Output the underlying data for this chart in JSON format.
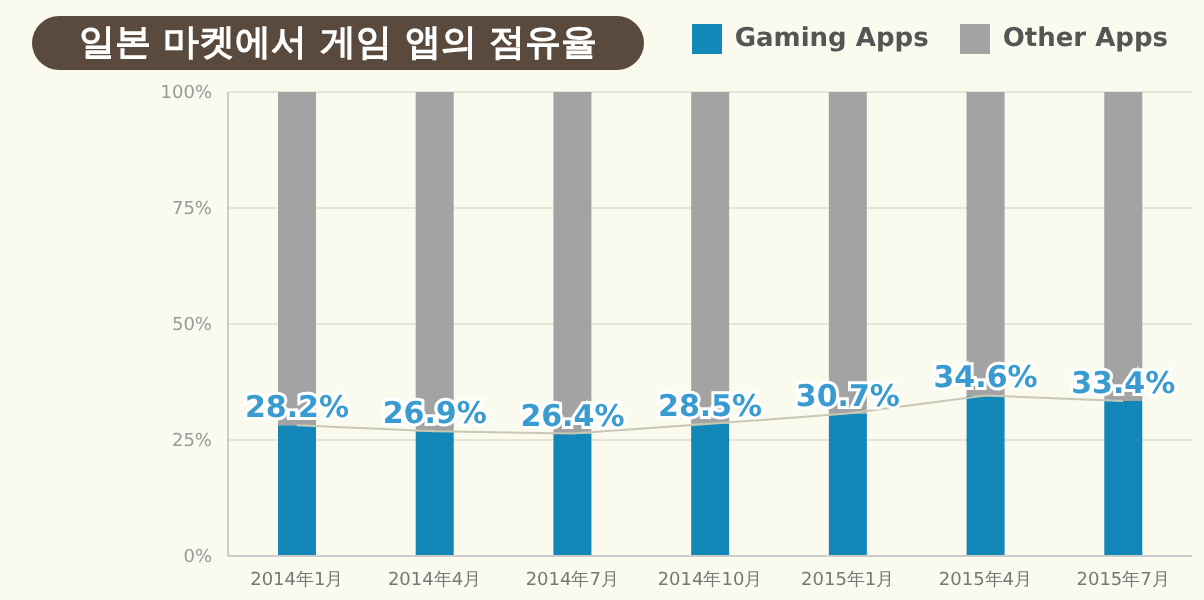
{
  "chart_data": {
    "type": "bar",
    "title": "일본 마켓에서 게임 앱의 점유율",
    "stacked": true,
    "categories": [
      "2014年1月",
      "2014年4月",
      "2014年7月",
      "2014年10月",
      "2015年1月",
      "2015年4月",
      "2015年7月"
    ],
    "series": [
      {
        "name": "Gaming Apps",
        "color": "#1287b8",
        "values": [
          28.2,
          26.9,
          26.4,
          28.5,
          30.7,
          34.6,
          33.4
        ],
        "value_labels": [
          "28.2%",
          "26.9%",
          "26.4%",
          "28.5%",
          "30.7%",
          "34.6%",
          "33.4%"
        ]
      },
      {
        "name": "Other Apps",
        "color": "#a3a3a3",
        "values": [
          71.8,
          73.1,
          73.6,
          71.5,
          69.3,
          65.4,
          66.6
        ]
      },
      {
        "type": "line",
        "color": "#c9c8b4",
        "values": [
          28.2,
          26.9,
          26.4,
          28.5,
          30.7,
          34.6,
          33.4
        ],
        "marker": "none"
      }
    ],
    "ylim": [
      0,
      100
    ],
    "yticks": [
      {
        "value": 0,
        "label": "0%"
      },
      {
        "value": 25,
        "label": "25%"
      },
      {
        "value": 50,
        "label": "50%"
      },
      {
        "value": 75,
        "label": "75%"
      },
      {
        "value": 100,
        "label": "100%"
      }
    ],
    "grid": "y",
    "legend": "top right"
  }
}
